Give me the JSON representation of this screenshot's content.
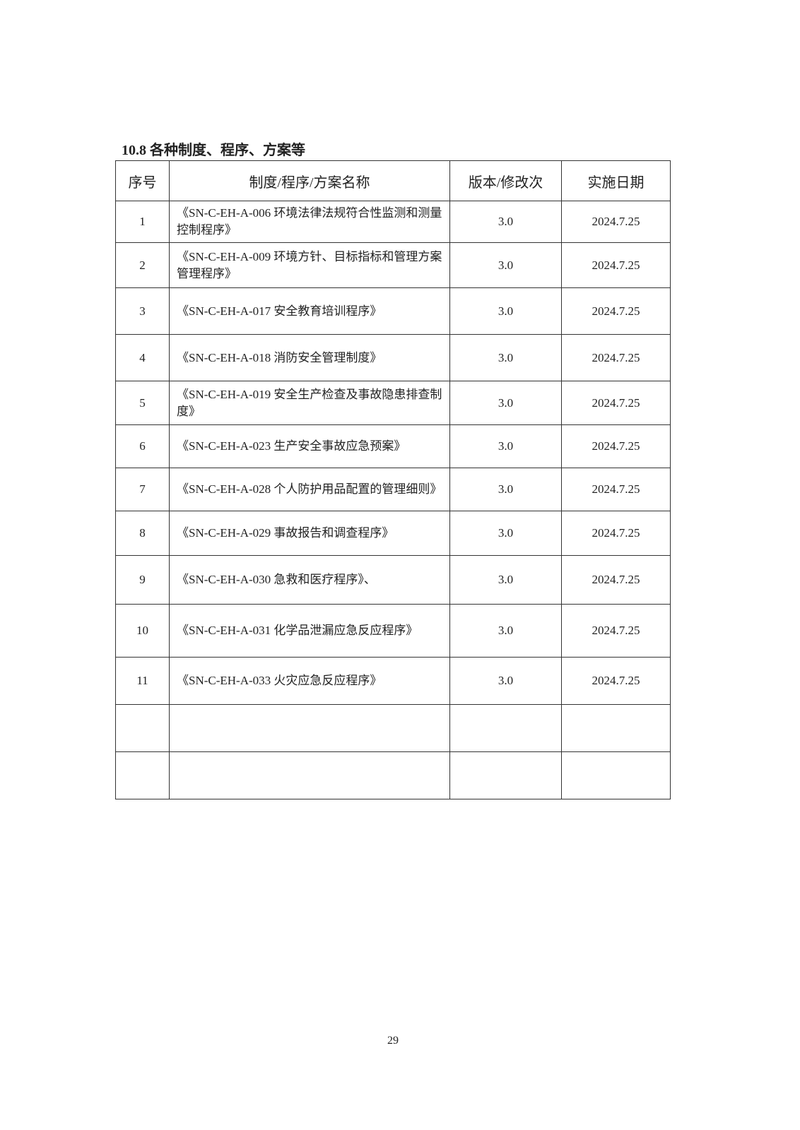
{
  "section_title": "10.8 各种制度、程序、方案等",
  "table": {
    "headers": [
      "序号",
      "制度/程序/方案名称",
      "版本/修改次",
      "实施日期"
    ],
    "rows": [
      {
        "no": "1",
        "name": "《SN-C-EH-A-006 环境法律法规符合性监测和测量控制程序》",
        "version": "3.0",
        "date": "2024.7.25"
      },
      {
        "no": "2",
        "name": "《SN-C-EH-A-009 环境方针、目标指标和管理方案管理程序》",
        "version": "3.0",
        "date": "2024.7.25"
      },
      {
        "no": "3",
        "name": "《SN-C-EH-A-017 安全教育培训程序》",
        "version": "3.0",
        "date": "2024.7.25"
      },
      {
        "no": "4",
        "name": "《SN-C-EH-A-018 消防安全管理制度》",
        "version": "3.0",
        "date": "2024.7.25"
      },
      {
        "no": "5",
        "name": "《SN-C-EH-A-019 安全生产检查及事故隐患排查制度》",
        "version": "3.0",
        "date": "2024.7.25"
      },
      {
        "no": "6",
        "name": "《SN-C-EH-A-023 生产安全事故应急预案》",
        "version": "3.0",
        "date": "2024.7.25"
      },
      {
        "no": "7",
        "name": "《SN-C-EH-A-028 个人防护用品配置的管理细则》",
        "version": "3.0",
        "date": "2024.7.25"
      },
      {
        "no": "8",
        "name": "《SN-C-EH-A-029 事故报告和调查程序》",
        "version": "3.0",
        "date": "2024.7.25"
      },
      {
        "no": "9",
        "name": "《SN-C-EH-A-030 急救和医疗程序》、",
        "version": "3.0",
        "date": "2024.7.25"
      },
      {
        "no": "10",
        "name": "《SN-C-EH-A-031 化学品泄漏应急反应程序》",
        "version": "3.0",
        "date": "2024.7.25"
      },
      {
        "no": "11",
        "name": "《SN-C-EH-A-033 火灾应急反应程序》",
        "version": "3.0",
        "date": "2024.7.25"
      },
      {
        "no": "",
        "name": "",
        "version": "",
        "date": ""
      },
      {
        "no": "",
        "name": "",
        "version": "",
        "date": ""
      }
    ]
  },
  "page_number": "29"
}
